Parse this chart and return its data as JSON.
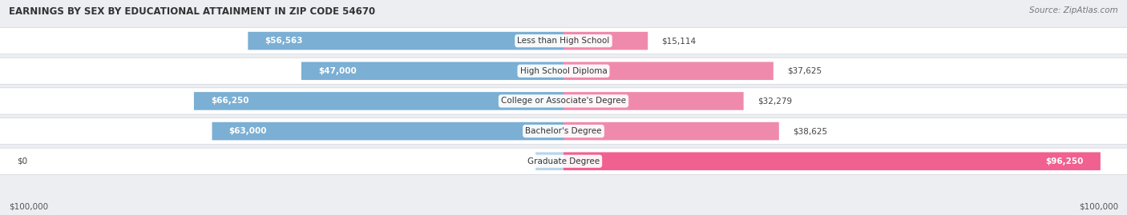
{
  "title": "EARNINGS BY SEX BY EDUCATIONAL ATTAINMENT IN ZIP CODE 54670",
  "source": "Source: ZipAtlas.com",
  "categories": [
    "Less than High School",
    "High School Diploma",
    "College or Associate's Degree",
    "Bachelor's Degree",
    "Graduate Degree"
  ],
  "male_values": [
    56563,
    47000,
    66250,
    63000,
    0
  ],
  "female_values": [
    15114,
    37625,
    32279,
    38625,
    96250
  ],
  "male_labels": [
    "$56,563",
    "$47,000",
    "$66,250",
    "$63,000",
    "$0"
  ],
  "female_labels": [
    "$15,114",
    "$37,625",
    "$32,279",
    "$38,625",
    "$96,250"
  ],
  "male_color": "#7bafd4",
  "female_color": "#f08aad",
  "female_color_dark": "#f06090",
  "male_color_light": "#b8d4ea",
  "max_value": 100000,
  "x_left_label": "$100,000",
  "x_right_label": "$100,000",
  "background_color": "#eceef2",
  "row_bg_color": "#ffffff",
  "row_bg_color_alt": "#f5f6f8",
  "title_fontsize": 8.5,
  "source_fontsize": 7.5,
  "label_fontsize": 7.5,
  "category_fontsize": 7.5,
  "male_label_inside_threshold": 30000,
  "female_label_inside_threshold": 50000
}
